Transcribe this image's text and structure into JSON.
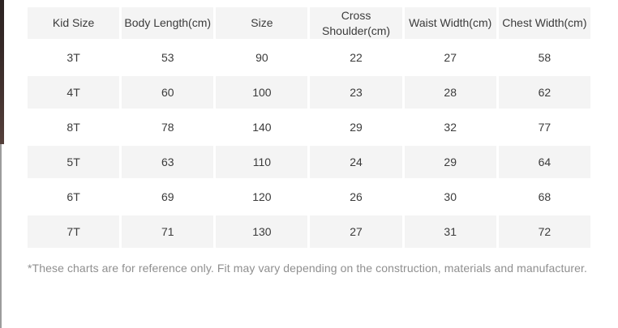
{
  "page": {
    "background_color": "#ffffff"
  },
  "decor": {
    "left_sliver_top_color": "#3a2c2a",
    "left_edge_line_color": "#9c9c9c"
  },
  "size_chart": {
    "stripe_color": "#f4f4f4",
    "text_color": "#3b3b3b",
    "columns": [
      "Kid Size",
      "Body Length(cm)",
      "Size",
      "Cross Shoulder(cm)",
      "Waist Width(cm)",
      "Chest Width(cm)"
    ],
    "rows": [
      [
        "3T",
        "53",
        "90",
        "22",
        "27",
        "58"
      ],
      [
        "4T",
        "60",
        "100",
        "23",
        "28",
        "62"
      ],
      [
        "8T",
        "78",
        "140",
        "29",
        "32",
        "77"
      ],
      [
        "5T",
        "63",
        "110",
        "24",
        "29",
        "64"
      ],
      [
        "6T",
        "69",
        "120",
        "26",
        "30",
        "68"
      ],
      [
        "7T",
        "71",
        "130",
        "27",
        "31",
        "72"
      ]
    ]
  },
  "footnote": {
    "text": "*These charts are for reference only. Fit may vary depending on the construction, materials and manufacturer.",
    "color": "#8f8f8f"
  },
  "chart_data": {
    "type": "table",
    "columns": [
      "Kid Size",
      "Body Length(cm)",
      "Size",
      "Cross Shoulder(cm)",
      "Waist Width(cm)",
      "Chest Width(cm)"
    ],
    "rows": [
      [
        "3T",
        53,
        90,
        22,
        27,
        58
      ],
      [
        "4T",
        60,
        100,
        23,
        28,
        62
      ],
      [
        "8T",
        78,
        140,
        29,
        32,
        77
      ],
      [
        "5T",
        63,
        110,
        24,
        29,
        64
      ],
      [
        "6T",
        69,
        120,
        26,
        30,
        68
      ],
      [
        "7T",
        71,
        130,
        27,
        31,
        72
      ]
    ]
  }
}
